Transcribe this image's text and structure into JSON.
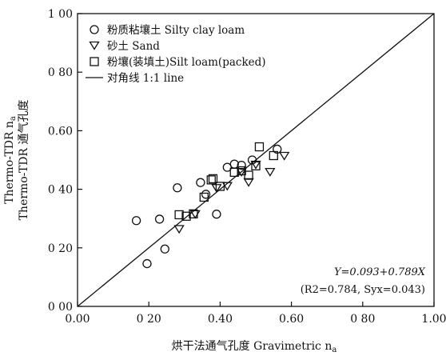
{
  "chart_data": {
    "type": "scatter",
    "xlabel": "烘干法通气孔度 Gravimetric n",
    "xlabel_sub": "a",
    "ylabel_line1": "Thermo-TDR 通气孔度",
    "ylabel_line2": "Thermo-TDR n",
    "ylabel_sub": "a",
    "xlim": [
      0.0,
      1.0
    ],
    "ylim": [
      0.0,
      1.0
    ],
    "x_ticks": [
      0.0,
      0.2,
      0.4,
      0.6,
      0.8,
      1.0
    ],
    "y_ticks": [
      0.0,
      0.2,
      0.4,
      0.6,
      0.8,
      1.0
    ],
    "x_tick_labels": [
      "0.00",
      "0 20",
      "0.40",
      "0.60",
      "0 80",
      "1.00"
    ],
    "y_tick_labels": [
      "0 00",
      "0 20",
      "0 40",
      "0.60",
      "0 80",
      "1 00"
    ],
    "grid": false,
    "legend_position": "top-left",
    "series": [
      {
        "name": "粉质粘壤土 Silty clay loam",
        "marker": "circle",
        "points": [
          [
            0.165,
            0.293
          ],
          [
            0.195,
            0.146
          ],
          [
            0.23,
            0.298
          ],
          [
            0.245,
            0.196
          ],
          [
            0.28,
            0.405
          ],
          [
            0.345,
            0.423
          ],
          [
            0.36,
            0.383
          ],
          [
            0.39,
            0.315
          ],
          [
            0.42,
            0.475
          ],
          [
            0.44,
            0.486
          ],
          [
            0.46,
            0.482
          ],
          [
            0.49,
            0.5
          ],
          [
            0.56,
            0.537
          ]
        ]
      },
      {
        "name": "砂土 Sand",
        "marker": "triangle-down",
        "points": [
          [
            0.285,
            0.265
          ],
          [
            0.33,
            0.316
          ],
          [
            0.39,
            0.405
          ],
          [
            0.42,
            0.412
          ],
          [
            0.46,
            0.46
          ],
          [
            0.48,
            0.425
          ],
          [
            0.5,
            0.485
          ],
          [
            0.54,
            0.46
          ],
          [
            0.58,
            0.515
          ]
        ]
      },
      {
        "name": "粉壤(装填土)Silt loam(packed)",
        "marker": "square",
        "points": [
          [
            0.285,
            0.313
          ],
          [
            0.305,
            0.308
          ],
          [
            0.325,
            0.316
          ],
          [
            0.355,
            0.373
          ],
          [
            0.375,
            0.432
          ],
          [
            0.38,
            0.436
          ],
          [
            0.4,
            0.41
          ],
          [
            0.44,
            0.458
          ],
          [
            0.46,
            0.463
          ],
          [
            0.48,
            0.448
          ],
          [
            0.5,
            0.48
          ],
          [
            0.51,
            0.545
          ],
          [
            0.55,
            0.515
          ]
        ]
      }
    ],
    "reference_line": {
      "name": "对角线 1:1 line",
      "from": [
        0.0,
        0.0
      ],
      "to": [
        1.0,
        1.0
      ]
    },
    "annotation": {
      "equation": "Y=0.093+0.789X",
      "stats": "(R2=0.784, Syx=0.043)"
    }
  }
}
